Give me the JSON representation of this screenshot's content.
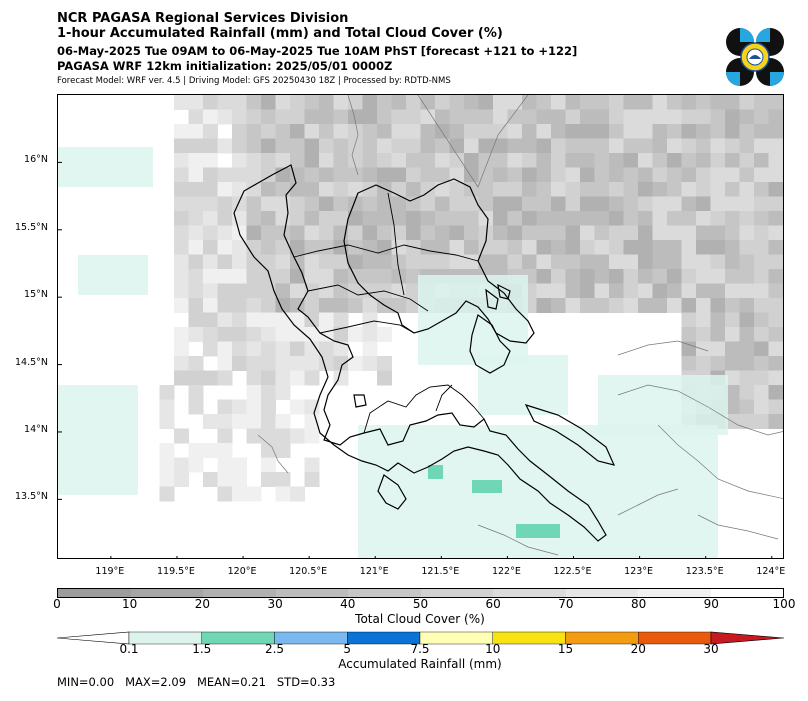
{
  "header": {
    "title": "NCR PAGASA Regional Services Division",
    "subtitle": "1-hour Accumulated Rainfall (mm) and Total Cloud Cover (%)",
    "valid_time": "06-May-2025 Tue 09AM to 06-May-2025 Tue 10AM PhST [forecast +121 to +122]",
    "init": "PAGASA WRF 12km initialization: 2025/05/01 0000Z",
    "model_info": "Forecast Model: WRF ver. 4.5 | Driving Model: GFS 20250430 18Z | Processed by: RDTD-NMS"
  },
  "map": {
    "lat_labels": [
      "16°N",
      "15.5°N",
      "15°N",
      "14.5°N",
      "14°N",
      "13.5°N"
    ],
    "lon_labels": [
      "119°E",
      "119.5°E",
      "120°E",
      "120.5°E",
      "121°E",
      "121.5°E",
      "122°E",
      "122.5°E",
      "123°E",
      "123.5°E",
      "124°E"
    ],
    "lat_values": [
      16,
      15.5,
      15,
      14.5,
      14,
      13.5
    ],
    "lon_values": [
      119,
      119.5,
      120,
      120.5,
      121,
      121.5,
      122,
      122.5,
      123,
      123.5,
      124
    ],
    "lon_range": [
      118.6,
      124.1
    ],
    "lat_range": [
      13.05,
      16.5
    ]
  },
  "cloud_cover_bar": {
    "title": "Total Cloud Cover (%)",
    "ticks": [
      "0",
      "10",
      "20",
      "30",
      "40",
      "50",
      "60",
      "70",
      "80",
      "90",
      "100"
    ],
    "colors": [
      "#9c9c9c",
      "#a6a6a6",
      "#b1b1b1",
      "#bcbcbc",
      "#c6c6c6",
      "#d1d1d1",
      "#dbdbdb",
      "#e6e6e6",
      "#f0f0f0",
      "#ffffff"
    ]
  },
  "rainfall_bar": {
    "title": "Accumulated Rainfall (mm)",
    "ticks": [
      "0.1",
      "1.5",
      "2.5",
      "5",
      "7.5",
      "10",
      "15",
      "20",
      "30"
    ],
    "colors": [
      "#ffffff",
      "#ddf4ee",
      "#6fd7b5",
      "#7ab8ee",
      "#0b72d6",
      "#ffffb5",
      "#f8e212",
      "#f39c12",
      "#ea5a0c",
      "#c7191f"
    ]
  },
  "stats": "MIN=0.00   MAX=2.09   MEAN=0.21   STD=0.33"
}
